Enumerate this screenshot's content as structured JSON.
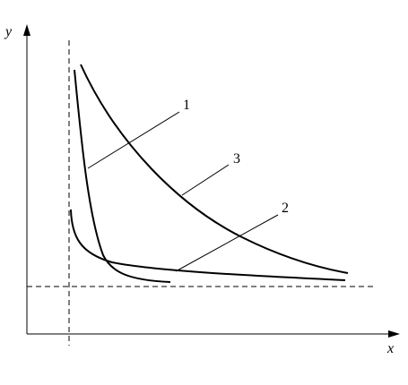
{
  "axes": {
    "x": "x",
    "y": "y"
  },
  "curves": [
    {
      "label": "1"
    },
    {
      "label": "2"
    },
    {
      "label": "3"
    }
  ]
}
